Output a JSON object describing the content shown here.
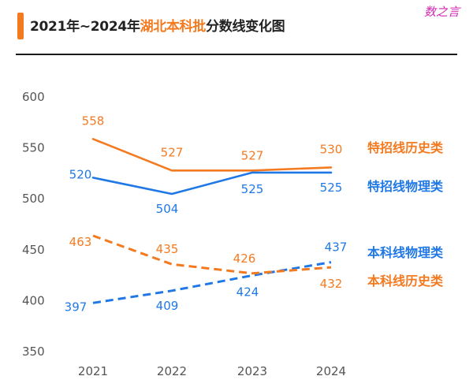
{
  "title": {
    "prefix": "2021年~2024年",
    "highlight": "湖北本科批",
    "suffix": "分数线变化图"
  },
  "watermark": "数之言",
  "colors": {
    "orange": "#f47a20",
    "blue": "#1f78e6"
  },
  "chart_data": {
    "type": "line",
    "title": "2021年~2024年湖北本科批分数线变化图",
    "x": [
      "2021",
      "2022",
      "2023",
      "2024"
    ],
    "yticks": [
      "600",
      "550",
      "500",
      "450",
      "400",
      "350"
    ],
    "ylim": [
      350,
      600
    ],
    "grid": false,
    "series": [
      {
        "name": "特招线历史类",
        "values": [
          558,
          527,
          527,
          530
        ],
        "labels": [
          "558",
          "527",
          "527",
          "530"
        ],
        "color": "#f47a20",
        "dash": false
      },
      {
        "name": "特招线物理类",
        "values": [
          520,
          504,
          525,
          525
        ],
        "labels": [
          "520",
          "504",
          "525",
          "525"
        ],
        "color": "#1f78e6",
        "dash": false
      },
      {
        "name": "本科线物理类",
        "values": [
          397,
          409,
          424,
          437
        ],
        "labels": [
          "397",
          "409",
          "424",
          "437"
        ],
        "color": "#1f78e6",
        "dash": true
      },
      {
        "name": "本科线历史类",
        "values": [
          463,
          435,
          426,
          432
        ],
        "labels": [
          "463",
          "435",
          "426",
          "432"
        ],
        "color": "#f47a20",
        "dash": true
      }
    ]
  }
}
